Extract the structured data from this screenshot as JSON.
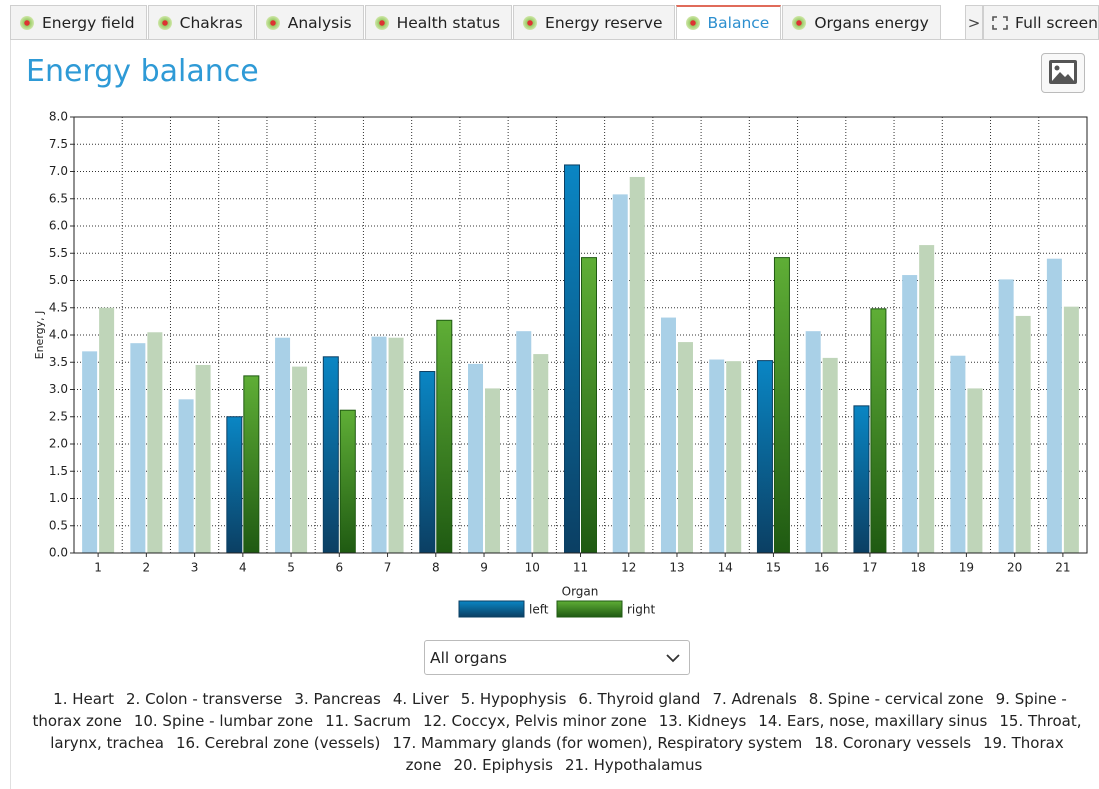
{
  "tabs": [
    "Energy field",
    "Chakras",
    "Analysis",
    "Health status",
    "Energy reserve",
    "Balance",
    "Organs energy"
  ],
  "active_tab": 5,
  "tab_scroll": ">",
  "full_screen": "Full screen",
  "page_title": "Energy balance",
  "chart_data": {
    "type": "bar",
    "x_label": "Organ",
    "y_label": "Energy, J",
    "categories": [
      "1",
      "2",
      "3",
      "4",
      "5",
      "6",
      "7",
      "8",
      "9",
      "10",
      "11",
      "12",
      "13",
      "14",
      "15",
      "16",
      "17",
      "18",
      "19",
      "20",
      "21"
    ],
    "highlighted": [
      false,
      false,
      false,
      true,
      false,
      true,
      false,
      true,
      false,
      false,
      true,
      false,
      false,
      false,
      true,
      false,
      true,
      false,
      false,
      false,
      false
    ],
    "series": [
      {
        "name": "left",
        "color": "#0a86c4",
        "dark_color": "#0b3f63",
        "faded_color": "#a9d0e7",
        "values": [
          3.7,
          3.85,
          2.82,
          2.5,
          3.95,
          3.6,
          3.97,
          3.33,
          3.47,
          4.07,
          7.12,
          6.58,
          4.32,
          3.55,
          3.53,
          4.07,
          2.7,
          5.1,
          3.62,
          5.02,
          5.4
        ]
      },
      {
        "name": "right",
        "color": "#5fae36",
        "dark_color": "#1f5a12",
        "faded_color": "#bfd5b9",
        "values": [
          4.5,
          4.05,
          3.45,
          3.25,
          3.42,
          2.62,
          3.95,
          4.27,
          3.02,
          3.65,
          5.42,
          6.9,
          3.87,
          3.52,
          5.42,
          3.58,
          4.48,
          5.65,
          3.02,
          4.35,
          4.52
        ]
      }
    ],
    "ylim": [
      0,
      8
    ],
    "yticks": [
      {
        "value": 0,
        "label": "0.0"
      },
      0.5,
      {
        "value": 1,
        "label": "1.0"
      },
      1.5,
      {
        "value": 2,
        "label": "2.0"
      },
      2.5,
      {
        "value": 3,
        "label": "3.0"
      },
      3.5,
      {
        "value": 4,
        "label": "4.0"
      },
      4.5,
      {
        "value": 5,
        "label": "5.0"
      },
      5.5,
      {
        "value": 6,
        "label": "6.0"
      },
      6.5,
      {
        "value": 7,
        "label": "7.0"
      },
      7.5,
      {
        "value": 8,
        "label": "8.0"
      }
    ],
    "grid": true
  },
  "filter": "All organs",
  "organ_list": [
    "1. Heart",
    "2. Colon - transverse",
    "3. Pancreas",
    "4. Liver",
    "5. Hypophysis",
    "6. Thyroid gland",
    "7. Adrenals",
    "8. Spine - cervical zone",
    "9. Spine - thorax zone",
    "10. Spine - lumbar zone",
    "11. Sacrum",
    "12. Coccyx, Pelvis minor zone",
    "13. Kidneys",
    "14. Ears, nose, maxillary sinus",
    "15. Throat, larynx, trachea",
    "16. Cerebral zone (vessels)",
    "17. Mammary glands (for women), Respiratory system",
    "18. Coronary vessels",
    "19. Thorax zone",
    "20. Epiphysis",
    "21. Hypothalamus"
  ]
}
